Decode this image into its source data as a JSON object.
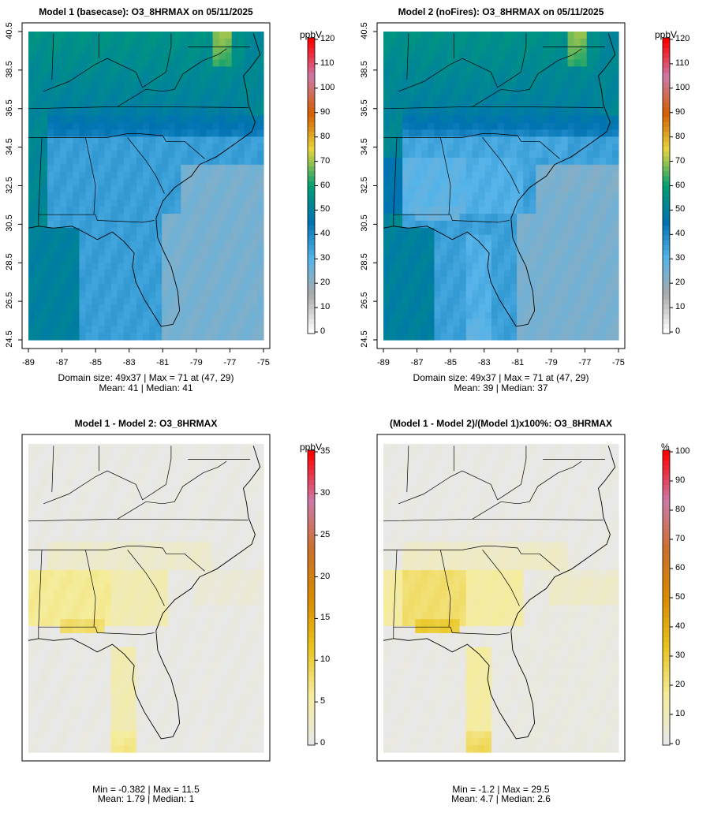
{
  "panels": [
    {
      "title": "Model 1 (basecase): O3_8HRMAX on 05/11/2025",
      "stat1": "Domain size: 49x37 | Max = 71 at (47, 29)",
      "stat2": "Mean: 41 |  Median: 41",
      "unit": "ppbV",
      "colorbar_ticks": [
        "0",
        "10",
        "20",
        "30",
        "40",
        "50",
        "60",
        "70",
        "80",
        "90",
        "100",
        "110",
        "120"
      ],
      "x_ticks": [
        "-89",
        "-87",
        "-85",
        "-83",
        "-81",
        "-79",
        "-77",
        "-75"
      ],
      "y_ticks": [
        "24.5",
        "26.5",
        "28.5",
        "30.5",
        "32.5",
        "34.5",
        "36.5",
        "38.5",
        "40.5"
      ],
      "field": "base"
    },
    {
      "title": "Model 2 (noFires): O3_8HRMAX on 05/11/2025",
      "stat1": "Domain size: 49x37 | Max = 71 at (47, 29)",
      "stat2": "Mean: 39 |  Median: 37",
      "unit": "ppbV",
      "colorbar_ticks": [
        "0",
        "10",
        "20",
        "30",
        "40",
        "50",
        "60",
        "70",
        "80",
        "90",
        "100",
        "110",
        "120"
      ],
      "x_ticks": [
        "-89",
        "-87",
        "-85",
        "-83",
        "-81",
        "-79",
        "-77",
        "-75"
      ],
      "y_ticks": [
        "24.5",
        "26.5",
        "28.5",
        "30.5",
        "32.5",
        "34.5",
        "36.5",
        "38.5",
        "40.5"
      ],
      "field": "nofire"
    },
    {
      "title": "Model 1 - Model 2: O3_8HRMAX",
      "stat1": "Min = -0.382 | Max = 11.5",
      "stat2": "Mean: 1.79 |  Median: 1",
      "unit": "ppbV",
      "colorbar_ticks": [
        "0",
        "5",
        "10",
        "15",
        "20",
        "25",
        "30",
        "35"
      ],
      "field": "diff"
    },
    {
      "title": "(Model 1 - Model 2)/(Model 1)x100%: O3_8HRMAX",
      "stat1": "Min = -1.2 | Max = 29.5",
      "stat2": "Mean: 4.7 |  Median: 2.6",
      "unit": "%",
      "colorbar_ticks": [
        "0",
        "10",
        "20",
        "30",
        "40",
        "50",
        "60",
        "70",
        "80",
        "90",
        "100"
      ],
      "field": "pct"
    }
  ],
  "colors": {
    "ozone_scale": [
      "#ffffff",
      "#aaaaaa",
      "#56b4e9",
      "#0072b2",
      "#009e73",
      "#e6d53c",
      "#d55e00",
      "#cc79a7",
      "#ff0000"
    ],
    "diff_scale": [
      "#e8e8e8",
      "#f5ec9a",
      "#e9c31a",
      "#d98a00",
      "#cc6f2a",
      "#cc79a7",
      "#ff0000"
    ]
  }
}
